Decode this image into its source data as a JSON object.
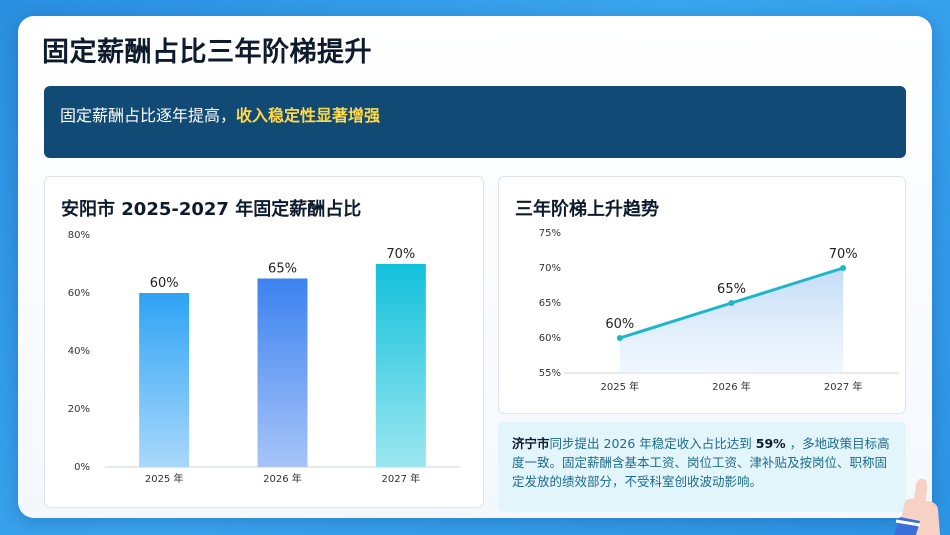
{
  "slide": {
    "title": "固定薪酬占比三年阶梯提升",
    "banner": {
      "text": "固定薪酬占比逐年提高，",
      "highlight": "收入稳定性显著增强"
    },
    "note": {
      "city": "济宁市",
      "text1": "同步提出 2026 年稳定收入占比达到 ",
      "value": "59%",
      "text2": " ，多地政策目标高度一致。固定薪酬含基本工资、岗位工资、津补贴及按岗位、职称固定发放的绩效部分，不受科室创收波动影响。"
    }
  },
  "chart_data": [
    {
      "type": "bar",
      "title": "安阳市 2025-2027 年固定薪酬占比",
      "categories": [
        "2025 年",
        "2026 年",
        "2027 年"
      ],
      "values": [
        60,
        65,
        70
      ],
      "value_labels": [
        "60%",
        "65%",
        "70%"
      ],
      "ylim": [
        0,
        80
      ],
      "yticks": [
        "0%",
        "20%",
        "40%",
        "60%",
        "80%"
      ],
      "colors": [
        "#2ea3f4",
        "#3b82f0",
        "#12c0db"
      ]
    },
    {
      "type": "line",
      "title": "三年阶梯上升趋势",
      "categories": [
        "2025 年",
        "2026 年",
        "2027 年"
      ],
      "values": [
        60,
        65,
        70
      ],
      "value_labels": [
        "60%",
        "65%",
        "70%"
      ],
      "ylim": [
        55,
        75
      ],
      "yticks": [
        "55%",
        "60%",
        "65%",
        "70%",
        "75%"
      ],
      "color": "#1fb6cc"
    }
  ]
}
